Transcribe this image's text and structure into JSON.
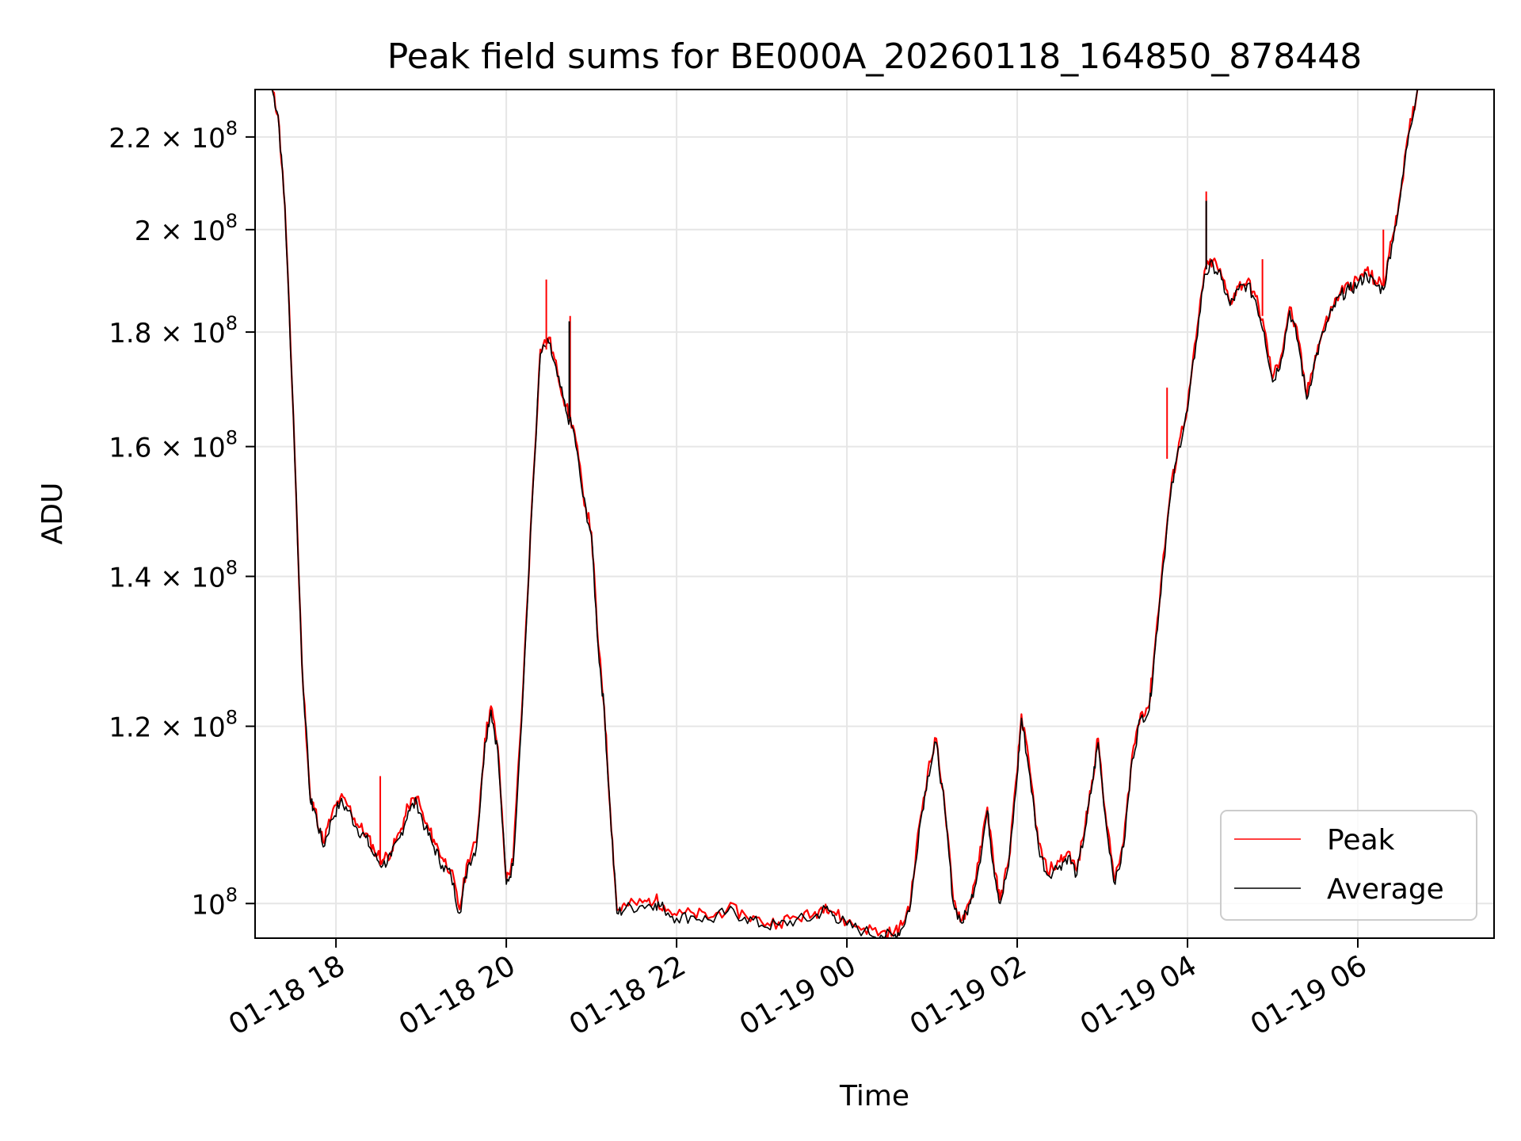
{
  "chart_data": {
    "type": "line",
    "title": "Peak field sums for BE000A_20260118_164850_878448",
    "xlabel": "Time",
    "ylabel": "ADU",
    "yscale": "log",
    "grid": true,
    "legend_position": "lower-right",
    "xlim_hours": [
      17.05,
      31.6
    ],
    "ylim": [
      96500000,
      231000000
    ],
    "x_ticks": [
      {
        "hour": 18,
        "label": "01-18 18"
      },
      {
        "hour": 20,
        "label": "01-18 20"
      },
      {
        "hour": 22,
        "label": "01-18 22"
      },
      {
        "hour": 24,
        "label": "01-19 00"
      },
      {
        "hour": 26,
        "label": "01-19 02"
      },
      {
        "hour": 28,
        "label": "01-19 04"
      },
      {
        "hour": 30,
        "label": "01-19 06"
      }
    ],
    "y_ticks": [
      {
        "value": 100000000,
        "mantissa": "",
        "base": "10",
        "exp": "8"
      },
      {
        "value": 120000000,
        "mantissa": "1.2 × ",
        "base": "10",
        "exp": "8"
      },
      {
        "value": 140000000,
        "mantissa": "1.4 × ",
        "base": "10",
        "exp": "8"
      },
      {
        "value": 160000000,
        "mantissa": "1.6 × ",
        "base": "10",
        "exp": "8"
      },
      {
        "value": 180000000,
        "mantissa": "1.8 × ",
        "base": "10",
        "exp": "8"
      },
      {
        "value": 200000000,
        "mantissa": "2 × ",
        "base": "10",
        "exp": "8"
      },
      {
        "value": 220000000,
        "mantissa": "2.2 × ",
        "base": "10",
        "exp": "8"
      }
    ],
    "series": [
      {
        "name": "Average",
        "color": "#000000",
        "points": [
          [
            17.25,
            231000000
          ],
          [
            17.32,
            225000000
          ],
          [
            17.4,
            205000000
          ],
          [
            17.5,
            165000000
          ],
          [
            17.6,
            128000000
          ],
          [
            17.7,
            111000000
          ],
          [
            17.75,
            110000000
          ],
          [
            17.85,
            106000000
          ],
          [
            17.95,
            109000000
          ],
          [
            18.05,
            111000000
          ],
          [
            18.15,
            110000000
          ],
          [
            18.25,
            108000000
          ],
          [
            18.35,
            107000000
          ],
          [
            18.45,
            105000000
          ],
          [
            18.55,
            104000000
          ],
          [
            18.65,
            105000000
          ],
          [
            18.75,
            107000000
          ],
          [
            18.85,
            110000000
          ],
          [
            18.95,
            111000000
          ],
          [
            19.05,
            108000000
          ],
          [
            19.15,
            106000000
          ],
          [
            19.25,
            104000000
          ],
          [
            19.35,
            103000000
          ],
          [
            19.45,
            99000000
          ],
          [
            19.55,
            104000000
          ],
          [
            19.65,
            106000000
          ],
          [
            19.75,
            118000000
          ],
          [
            19.82,
            122000000
          ],
          [
            19.9,
            117000000
          ],
          [
            20.0,
            102000000
          ],
          [
            20.08,
            104000000
          ],
          [
            20.2,
            125000000
          ],
          [
            20.3,
            150000000
          ],
          [
            20.4,
            176000000
          ],
          [
            20.5,
            178000000
          ],
          [
            20.6,
            172000000
          ],
          [
            20.7,
            166000000
          ],
          [
            20.8,
            162000000
          ],
          [
            20.9,
            152000000
          ],
          [
            21.0,
            146000000
          ],
          [
            21.08,
            130000000
          ],
          [
            21.15,
            122000000
          ],
          [
            21.22,
            110000000
          ],
          [
            21.3,
            99000000
          ],
          [
            21.4,
            99500000
          ],
          [
            21.6,
            99800000
          ],
          [
            21.75,
            100000000
          ],
          [
            21.85,
            99500000
          ],
          [
            22.0,
            98500000
          ],
          [
            22.2,
            98700000
          ],
          [
            22.4,
            98300000
          ],
          [
            22.6,
            99200000
          ],
          [
            22.8,
            98600000
          ],
          [
            23.0,
            97800000
          ],
          [
            23.2,
            97800000
          ],
          [
            23.4,
            98300000
          ],
          [
            23.6,
            98500000
          ],
          [
            23.75,
            99500000
          ],
          [
            23.85,
            98800000
          ],
          [
            24.0,
            97800000
          ],
          [
            24.2,
            97200000
          ],
          [
            24.4,
            96800000
          ],
          [
            24.55,
            96700000
          ],
          [
            24.65,
            97500000
          ],
          [
            24.75,
            100000000
          ],
          [
            24.85,
            108000000
          ],
          [
            24.95,
            114000000
          ],
          [
            25.05,
            118000000
          ],
          [
            25.15,
            110000000
          ],
          [
            25.25,
            100000000
          ],
          [
            25.35,
            98000000
          ],
          [
            25.45,
            100000000
          ],
          [
            25.55,
            104000000
          ],
          [
            25.65,
            110000000
          ],
          [
            25.72,
            104000000
          ],
          [
            25.8,
            100000000
          ],
          [
            25.9,
            104000000
          ],
          [
            26.0,
            114000000
          ],
          [
            26.05,
            121000000
          ],
          [
            26.15,
            114000000
          ],
          [
            26.25,
            106000000
          ],
          [
            26.35,
            103000000
          ],
          [
            26.5,
            104000000
          ],
          [
            26.6,
            105000000
          ],
          [
            26.7,
            103000000
          ],
          [
            26.8,
            108000000
          ],
          [
            26.88,
            113000000
          ],
          [
            26.95,
            118000000
          ],
          [
            27.05,
            108000000
          ],
          [
            27.15,
            102000000
          ],
          [
            27.25,
            106000000
          ],
          [
            27.35,
            116000000
          ],
          [
            27.45,
            121000000
          ],
          [
            27.55,
            122000000
          ],
          [
            27.62,
            130000000
          ],
          [
            27.7,
            140000000
          ],
          [
            27.8,
            152000000
          ],
          [
            27.9,
            160000000
          ],
          [
            28.0,
            166000000
          ],
          [
            28.1,
            178000000
          ],
          [
            28.2,
            191000000
          ],
          [
            28.3,
            193000000
          ],
          [
            28.4,
            190000000
          ],
          [
            28.5,
            185000000
          ],
          [
            28.6,
            188000000
          ],
          [
            28.7,
            189000000
          ],
          [
            28.8,
            186000000
          ],
          [
            28.9,
            180000000
          ],
          [
            29.0,
            171000000
          ],
          [
            29.1,
            175000000
          ],
          [
            29.2,
            184000000
          ],
          [
            29.3,
            178000000
          ],
          [
            29.4,
            168000000
          ],
          [
            29.5,
            175000000
          ],
          [
            29.6,
            180000000
          ],
          [
            29.7,
            184000000
          ],
          [
            29.8,
            187000000
          ],
          [
            29.9,
            188000000
          ],
          [
            30.0,
            189000000
          ],
          [
            30.1,
            191000000
          ],
          [
            30.2,
            189000000
          ],
          [
            30.3,
            188000000
          ],
          [
            30.4,
            197000000
          ],
          [
            30.5,
            207000000
          ],
          [
            30.6,
            221000000
          ],
          [
            30.7,
            231000000
          ]
        ]
      },
      {
        "name": "Peak",
        "color": "#ff0000",
        "points": [
          [
            17.25,
            231000000
          ],
          [
            17.32,
            225000000
          ],
          [
            17.4,
            205000000
          ],
          [
            17.5,
            165000000
          ],
          [
            17.6,
            128000000
          ],
          [
            17.7,
            111200000
          ],
          [
            17.75,
            110300000
          ],
          [
            17.85,
            106500000
          ],
          [
            17.95,
            109500000
          ],
          [
            18.05,
            111500000
          ],
          [
            18.15,
            110500000
          ],
          [
            18.25,
            108500000
          ],
          [
            18.35,
            107500000
          ],
          [
            18.45,
            105600000
          ],
          [
            18.55,
            104600000
          ],
          [
            18.65,
            105500000
          ],
          [
            18.75,
            107600000
          ],
          [
            18.85,
            110500000
          ],
          [
            18.95,
            111600000
          ],
          [
            19.05,
            108600000
          ],
          [
            19.15,
            106800000
          ],
          [
            19.25,
            104800000
          ],
          [
            19.35,
            103500000
          ],
          [
            19.45,
            99400000
          ],
          [
            19.55,
            104600000
          ],
          [
            19.65,
            106500000
          ],
          [
            19.75,
            118500000
          ],
          [
            19.82,
            122500000
          ],
          [
            19.9,
            117500000
          ],
          [
            20.0,
            102400000
          ],
          [
            20.08,
            104500000
          ],
          [
            20.2,
            125500000
          ],
          [
            20.3,
            150500000
          ],
          [
            20.4,
            176800000
          ],
          [
            20.5,
            179000000
          ],
          [
            20.6,
            172800000
          ],
          [
            20.7,
            166800000
          ],
          [
            20.8,
            162600000
          ],
          [
            20.9,
            152600000
          ],
          [
            21.0,
            146500000
          ],
          [
            21.08,
            130500000
          ],
          [
            21.15,
            122400000
          ],
          [
            21.22,
            110300000
          ],
          [
            21.3,
            99300000
          ],
          [
            21.4,
            99800000
          ],
          [
            21.6,
            100100000
          ],
          [
            21.75,
            100400000
          ],
          [
            21.85,
            99800000
          ],
          [
            22.0,
            98800000
          ],
          [
            22.2,
            99000000
          ],
          [
            22.4,
            98600000
          ],
          [
            22.6,
            99500000
          ],
          [
            22.8,
            98900000
          ],
          [
            23.0,
            98100000
          ],
          [
            23.2,
            98100000
          ],
          [
            23.4,
            98600000
          ],
          [
            23.6,
            98800000
          ],
          [
            23.75,
            99900000
          ],
          [
            23.85,
            99100000
          ],
          [
            24.0,
            98100000
          ],
          [
            24.2,
            97500000
          ],
          [
            24.4,
            97100000
          ],
          [
            24.55,
            97000000
          ],
          [
            24.65,
            97800000
          ],
          [
            24.75,
            100300000
          ],
          [
            24.85,
            108400000
          ],
          [
            24.95,
            114500000
          ],
          [
            25.05,
            118500000
          ],
          [
            25.15,
            110400000
          ],
          [
            25.25,
            100300000
          ],
          [
            25.35,
            98300000
          ],
          [
            25.45,
            100400000
          ],
          [
            25.55,
            104400000
          ],
          [
            25.65,
            110400000
          ],
          [
            25.72,
            104400000
          ],
          [
            25.8,
            100400000
          ],
          [
            25.9,
            104500000
          ],
          [
            26.0,
            114500000
          ],
          [
            26.05,
            121500000
          ],
          [
            26.15,
            114500000
          ],
          [
            26.25,
            106400000
          ],
          [
            26.35,
            103400000
          ],
          [
            26.5,
            104400000
          ],
          [
            26.6,
            105500000
          ],
          [
            26.7,
            103400000
          ],
          [
            26.8,
            108500000
          ],
          [
            26.88,
            113500000
          ],
          [
            26.95,
            118500000
          ],
          [
            27.05,
            108400000
          ],
          [
            27.15,
            102400000
          ],
          [
            27.25,
            106500000
          ],
          [
            27.35,
            116500000
          ],
          [
            27.45,
            121600000
          ],
          [
            27.55,
            122600000
          ],
          [
            27.62,
            130600000
          ],
          [
            27.7,
            140600000
          ],
          [
            27.8,
            152700000
          ],
          [
            27.9,
            160700000
          ],
          [
            28.0,
            166700000
          ],
          [
            28.1,
            178700000
          ],
          [
            28.2,
            191700000
          ],
          [
            28.3,
            193800000
          ],
          [
            28.4,
            190700000
          ],
          [
            28.5,
            185700000
          ],
          [
            28.6,
            188700000
          ],
          [
            28.7,
            189700000
          ],
          [
            28.8,
            186700000
          ],
          [
            28.9,
            180700000
          ],
          [
            29.0,
            171600000
          ],
          [
            29.1,
            175700000
          ],
          [
            29.2,
            184700000
          ],
          [
            29.3,
            178700000
          ],
          [
            29.4,
            168600000
          ],
          [
            29.5,
            175700000
          ],
          [
            29.6,
            180700000
          ],
          [
            29.7,
            184700000
          ],
          [
            29.8,
            187700000
          ],
          [
            29.9,
            188800000
          ],
          [
            30.0,
            189800000
          ],
          [
            30.1,
            191800000
          ],
          [
            30.2,
            189800000
          ],
          [
            30.3,
            188800000
          ],
          [
            30.4,
            197800000
          ],
          [
            30.5,
            207800000
          ],
          [
            30.6,
            221000000
          ],
          [
            30.7,
            231000000
          ]
        ]
      }
    ],
    "spikes": [
      {
        "series": "Peak",
        "hour": 20.47,
        "from": 176800000,
        "to": 190000000
      },
      {
        "series": "Peak",
        "hour": 20.75,
        "from": 165000000,
        "to": 183000000
      },
      {
        "series": "Peak",
        "hour": 28.22,
        "from": 192000000,
        "to": 208000000
      },
      {
        "series": "Peak",
        "hour": 28.88,
        "from": 183000000,
        "to": 194000000
      },
      {
        "series": "Peak",
        "hour": 30.3,
        "from": 189000000,
        "to": 200000000
      },
      {
        "series": "Peak",
        "hour": 27.76,
        "from": 158000000,
        "to": 170000000
      },
      {
        "series": "Peak",
        "hour": 18.52,
        "from": 104000000,
        "to": 114000000
      },
      {
        "series": "Average",
        "hour": 20.74,
        "from": 165000000,
        "to": 182000000
      },
      {
        "series": "Average",
        "hour": 28.22,
        "from": 192000000,
        "to": 206000000
      }
    ]
  }
}
